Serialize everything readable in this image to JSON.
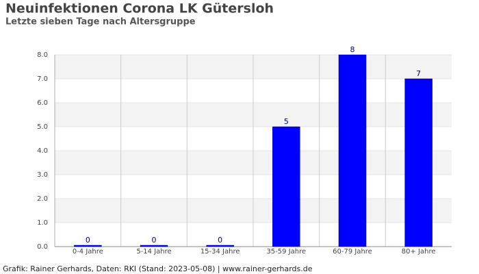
{
  "chart_data": {
    "type": "bar",
    "title": "Neuinfektionen Corona LK Gütersloh",
    "subtitle": "Letzte sieben Tage nach Altersgruppe",
    "caption": "Grafik: Rainer Gerhards, Daten: RKI (Stand: 2023-05-08) | www.rainer-gerhards.de",
    "categories": [
      "0-4 Jahre",
      "5-14 Jahre",
      "15-34 Jahre",
      "35-59 Jahre",
      "60-79 Jahre",
      "80+ Jahre"
    ],
    "values": [
      0,
      0,
      0,
      5,
      8,
      7
    ],
    "color": "#0000ff",
    "ylim": [
      0,
      8
    ],
    "yticks": [
      {
        "value": 0,
        "label": "0.0"
      },
      {
        "value": 1,
        "label": "1.0"
      },
      {
        "value": 2,
        "label": "2.0"
      },
      {
        "value": 3,
        "label": "3.0"
      },
      {
        "value": 4,
        "label": "4.0"
      },
      {
        "value": 5,
        "label": "5.0"
      },
      {
        "value": 6,
        "label": "6.0"
      },
      {
        "value": 7,
        "label": "7.0"
      },
      {
        "value": 8,
        "label": "8.0"
      }
    ],
    "grid": true
  }
}
